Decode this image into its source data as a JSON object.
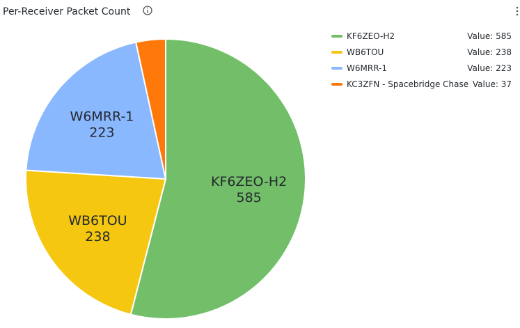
{
  "chart_data": {
    "type": "pie",
    "title": "Per-Receiver Packet Count",
    "value_label": "Value:",
    "series": [
      {
        "name": "KF6ZEO-H2",
        "color": "#73bf69",
        "value": 585
      },
      {
        "name": "WB6TOU",
        "color": "#f5c710",
        "value": 238
      },
      {
        "name": "W6MRR-1",
        "color": "#8ab8ff",
        "value": 223
      },
      {
        "name": "KC3ZFN - Spacebridge Chase",
        "color": "#ff780a",
        "value": 37
      }
    ]
  }
}
